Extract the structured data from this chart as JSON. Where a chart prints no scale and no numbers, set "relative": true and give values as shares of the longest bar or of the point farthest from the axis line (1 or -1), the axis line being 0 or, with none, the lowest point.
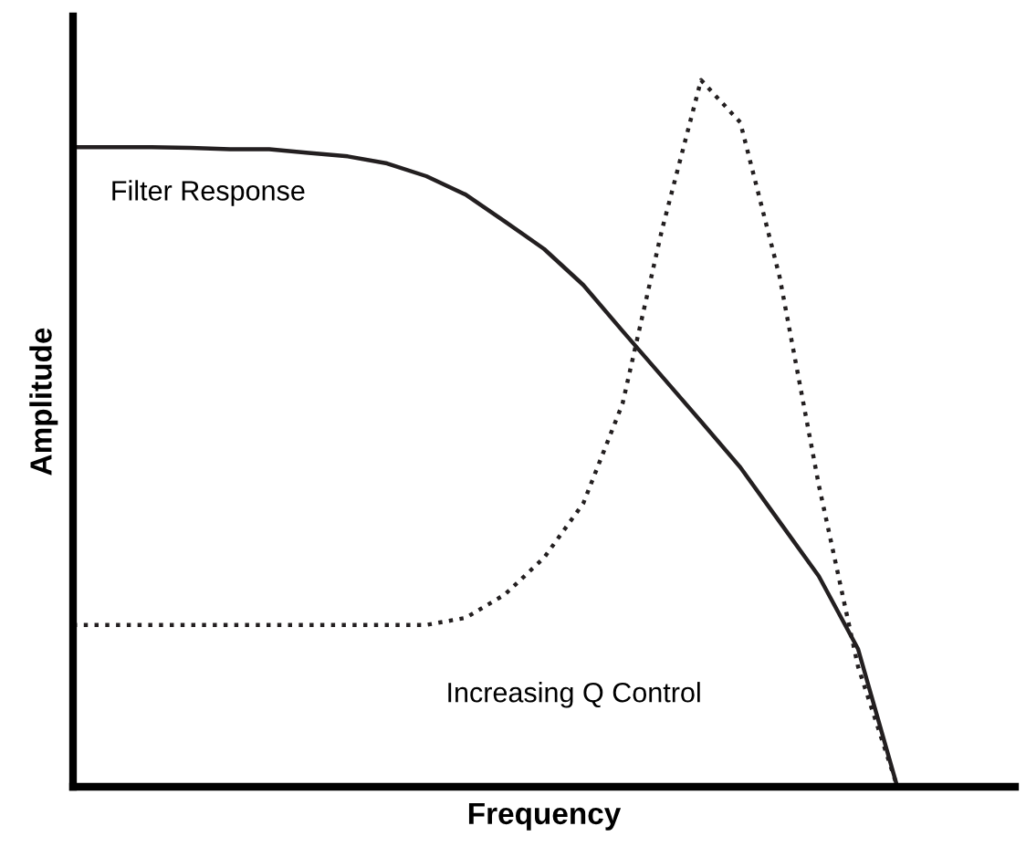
{
  "chart_data": {
    "type": "line",
    "relative": true,
    "xlabel": "Frequency",
    "ylabel": "Amplitude",
    "categories": [
      null,
      null,
      null,
      null,
      null,
      null,
      null,
      null,
      null,
      null,
      null,
      null,
      null,
      null,
      null,
      null,
      null,
      null,
      null,
      null,
      null,
      null,
      null,
      null,
      null
    ],
    "series": [
      {
        "color": "#231f20",
        "line_style": "solid",
        "values": [
          0.905,
          0.905,
          0.905,
          0.904,
          0.902,
          0.902,
          0.897,
          0.892,
          0.882,
          0.864,
          0.838,
          0.8,
          0.761,
          0.71,
          0.645,
          0.581,
          0.517,
          0.452,
          0.375,
          0.298,
          0.195,
          0,
          null,
          null,
          null
        ]
      },
      {
        "color": "#231f20",
        "line_style": "dotted",
        "values": [
          0.229,
          0.229,
          0.229,
          0.229,
          0.229,
          0.229,
          0.229,
          0.229,
          0.229,
          0.229,
          0.239,
          0.272,
          0.324,
          0.401,
          0.542,
          0.787,
          1.0,
          0.94,
          0.722,
          0.427,
          0.17,
          0,
          null,
          null,
          null
        ]
      }
    ],
    "annotations": [
      "Filter Response",
      "Increasing Q Control"
    ],
    "legend": false
  }
}
